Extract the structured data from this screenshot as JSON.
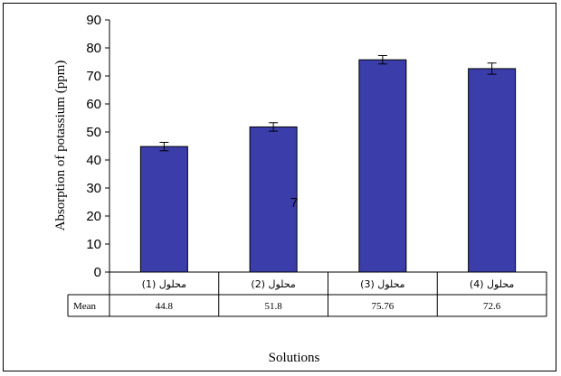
{
  "chart_data": {
    "type": "bar",
    "categories": [
      "محلول (1)",
      "محلول (2)",
      "محلول (3)",
      "محلول (4)"
    ],
    "values": [
      44.8,
      51.8,
      75.76,
      72.6
    ],
    "error": [
      1.5,
      1.5,
      1.5,
      2.0
    ],
    "ylabel": "Absorption of potassium (ppm)",
    "xlabel": "Solutions",
    "ylim": [
      0,
      90
    ],
    "yticks": [
      0,
      10,
      20,
      30,
      40,
      50,
      60,
      70,
      80,
      90
    ],
    "table": {
      "row_label": "Mean",
      "cells": [
        "44.8",
        "51.8",
        "75.76",
        "72.6"
      ]
    },
    "annotation": "7",
    "bar_color": "#3b3dab",
    "grid": false,
    "legend": "none"
  }
}
